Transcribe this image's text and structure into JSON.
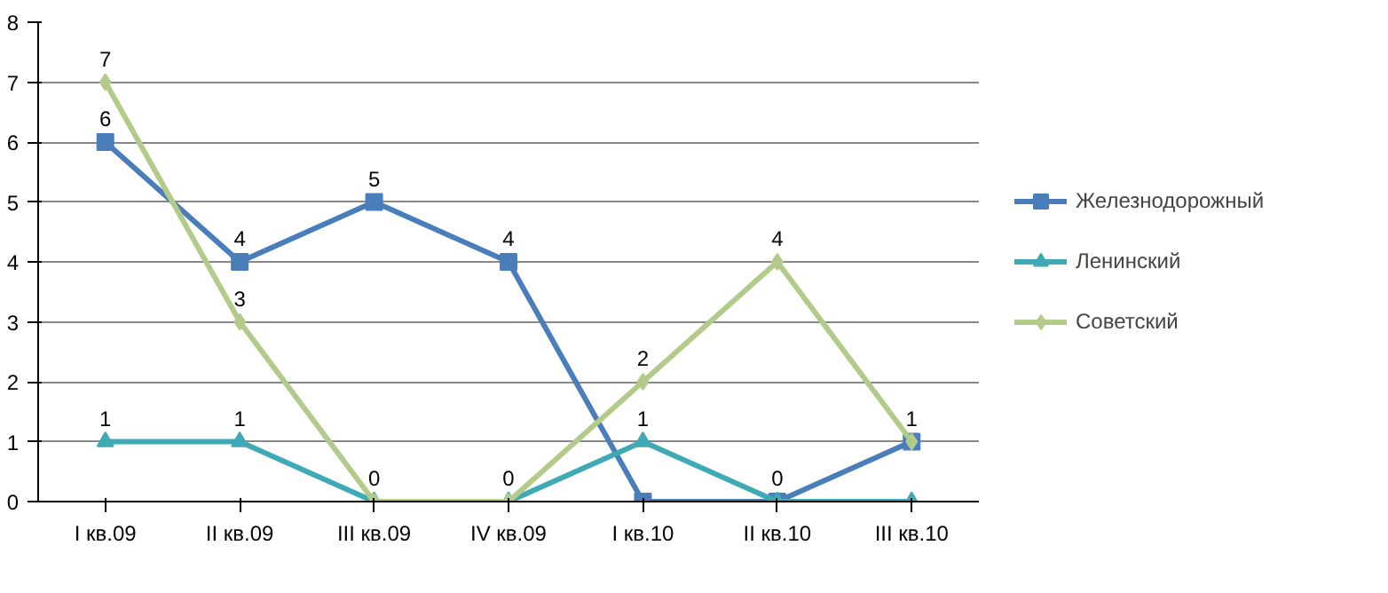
{
  "chart_data": {
    "type": "line",
    "categories": [
      "I кв.09",
      "II кв.09",
      "III кв.09",
      "IV кв.09",
      "I кв.10",
      "II кв.10",
      "III кв.10"
    ],
    "series": [
      {
        "name": "Железнодорожный",
        "color": "#4a7ebb",
        "marker": "square",
        "values": [
          6,
          4,
          5,
          4,
          0,
          0,
          1
        ],
        "value_labels": [
          "6",
          "4",
          "5",
          "4",
          null,
          null,
          null
        ]
      },
      {
        "name": "Ленинский",
        "color": "#3fa9b5",
        "marker": "triangle",
        "values": [
          1,
          1,
          0,
          0,
          1,
          0,
          0
        ],
        "value_labels": [
          "1",
          "1",
          null,
          null,
          "1",
          "0",
          null
        ]
      },
      {
        "name": "Советский",
        "color": "#b3cb8a",
        "marker": "diamond",
        "values": [
          7,
          3,
          0,
          0,
          2,
          4,
          1
        ],
        "value_labels": [
          "7",
          "3",
          "0",
          "0",
          "2",
          "4",
          "1"
        ]
      }
    ],
    "ylim": [
      0,
      8
    ],
    "yticks": [
      0,
      1,
      2,
      3,
      4,
      5,
      6,
      7,
      8
    ],
    "grid": "y",
    "legend": "right",
    "line_style": "solid"
  }
}
